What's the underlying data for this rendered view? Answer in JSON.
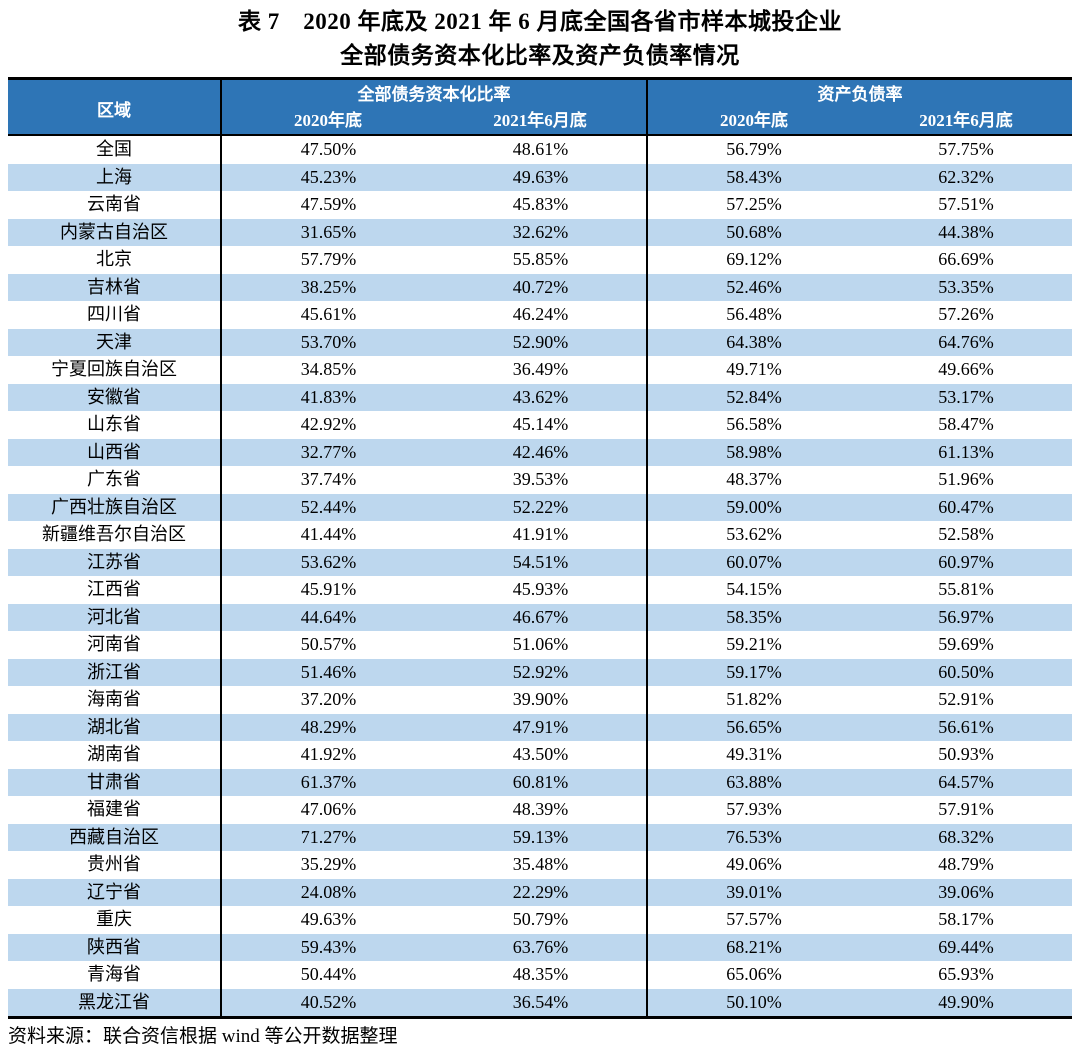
{
  "title": {
    "line1": "表 7　2020 年底及 2021 年 6 月底全国各省市样本城投企业",
    "line2": "全部债务资本化比率及资产负债率情况"
  },
  "table": {
    "region_header": "区域",
    "groups": [
      {
        "label": "全部债务资本化比率",
        "sub": [
          "2020年底",
          "2021年6月底"
        ]
      },
      {
        "label": "资产负债率",
        "sub": [
          "2020年底",
          "2021年6月底"
        ]
      }
    ],
    "rows": [
      {
        "region": "全国",
        "values": [
          "47.50%",
          "48.61%",
          "56.79%",
          "57.75%"
        ]
      },
      {
        "region": "上海",
        "values": [
          "45.23%",
          "49.63%",
          "58.43%",
          "62.32%"
        ]
      },
      {
        "region": "云南省",
        "values": [
          "47.59%",
          "45.83%",
          "57.25%",
          "57.51%"
        ]
      },
      {
        "region": "内蒙古自治区",
        "values": [
          "31.65%",
          "32.62%",
          "50.68%",
          "44.38%"
        ]
      },
      {
        "region": "北京",
        "values": [
          "57.79%",
          "55.85%",
          "69.12%",
          "66.69%"
        ]
      },
      {
        "region": "吉林省",
        "values": [
          "38.25%",
          "40.72%",
          "52.46%",
          "53.35%"
        ]
      },
      {
        "region": "四川省",
        "values": [
          "45.61%",
          "46.24%",
          "56.48%",
          "57.26%"
        ]
      },
      {
        "region": "天津",
        "values": [
          "53.70%",
          "52.90%",
          "64.38%",
          "64.76%"
        ]
      },
      {
        "region": "宁夏回族自治区",
        "values": [
          "34.85%",
          "36.49%",
          "49.71%",
          "49.66%"
        ]
      },
      {
        "region": "安徽省",
        "values": [
          "41.83%",
          "43.62%",
          "52.84%",
          "53.17%"
        ]
      },
      {
        "region": "山东省",
        "values": [
          "42.92%",
          "45.14%",
          "56.58%",
          "58.47%"
        ]
      },
      {
        "region": "山西省",
        "values": [
          "32.77%",
          "42.46%",
          "58.98%",
          "61.13%"
        ]
      },
      {
        "region": "广东省",
        "values": [
          "37.74%",
          "39.53%",
          "48.37%",
          "51.96%"
        ]
      },
      {
        "region": "广西壮族自治区",
        "values": [
          "52.44%",
          "52.22%",
          "59.00%",
          "60.47%"
        ]
      },
      {
        "region": "新疆维吾尔自治区",
        "values": [
          "41.44%",
          "41.91%",
          "53.62%",
          "52.58%"
        ]
      },
      {
        "region": "江苏省",
        "values": [
          "53.62%",
          "54.51%",
          "60.07%",
          "60.97%"
        ]
      },
      {
        "region": "江西省",
        "values": [
          "45.91%",
          "45.93%",
          "54.15%",
          "55.81%"
        ]
      },
      {
        "region": "河北省",
        "values": [
          "44.64%",
          "46.67%",
          "58.35%",
          "56.97%"
        ]
      },
      {
        "region": "河南省",
        "values": [
          "50.57%",
          "51.06%",
          "59.21%",
          "59.69%"
        ]
      },
      {
        "region": "浙江省",
        "values": [
          "51.46%",
          "52.92%",
          "59.17%",
          "60.50%"
        ]
      },
      {
        "region": "海南省",
        "values": [
          "37.20%",
          "39.90%",
          "51.82%",
          "52.91%"
        ]
      },
      {
        "region": "湖北省",
        "values": [
          "48.29%",
          "47.91%",
          "56.65%",
          "56.61%"
        ]
      },
      {
        "region": "湖南省",
        "values": [
          "41.92%",
          "43.50%",
          "49.31%",
          "50.93%"
        ]
      },
      {
        "region": "甘肃省",
        "values": [
          "61.37%",
          "60.81%",
          "63.88%",
          "64.57%"
        ]
      },
      {
        "region": "福建省",
        "values": [
          "47.06%",
          "48.39%",
          "57.93%",
          "57.91%"
        ]
      },
      {
        "region": "西藏自治区",
        "values": [
          "71.27%",
          "59.13%",
          "76.53%",
          "68.32%"
        ]
      },
      {
        "region": "贵州省",
        "values": [
          "35.29%",
          "35.48%",
          "49.06%",
          "48.79%"
        ]
      },
      {
        "region": "辽宁省",
        "values": [
          "24.08%",
          "22.29%",
          "39.01%",
          "39.06%"
        ]
      },
      {
        "region": "重庆",
        "values": [
          "49.63%",
          "50.79%",
          "57.57%",
          "58.17%"
        ]
      },
      {
        "region": "陕西省",
        "values": [
          "59.43%",
          "63.76%",
          "68.21%",
          "69.44%"
        ]
      },
      {
        "region": "青海省",
        "values": [
          "50.44%",
          "48.35%",
          "65.06%",
          "65.93%"
        ]
      },
      {
        "region": "黑龙江省",
        "values": [
          "40.52%",
          "36.54%",
          "50.10%",
          "49.90%"
        ]
      }
    ]
  },
  "footer": {
    "source": "资料来源：联合资信根据 wind 等公开数据整理"
  },
  "colors": {
    "header_bg": "#2E75B6",
    "stripe_bg": "#BDD7EE",
    "header_text": "#FFFFFF",
    "border": "#000000"
  }
}
